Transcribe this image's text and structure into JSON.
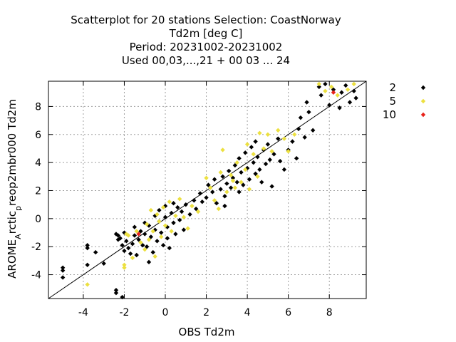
{
  "chart_data": {
    "type": "scatter",
    "title_lines": [
      "Scatterplot for   20 stations Selection: CoastNorway",
      "Td2m [deg C]",
      "Period: 20231002-20231002",
      "Used  00,03,...,21  + 00 03 ... 24"
    ],
    "xlabel": "OBS Td2m",
    "ylabel_main": "AROME",
    "ylabel_sub1": "A",
    "ylabel_mid": "rctic",
    "ylabel_sub2": "p",
    "ylabel_tail": "reop2mbr000 Td2m",
    "xlim": [
      -5.7,
      9.8
    ],
    "ylim": [
      -5.7,
      9.8
    ],
    "xticks": [
      -4,
      -2,
      0,
      2,
      4,
      6,
      8
    ],
    "yticks": [
      -4,
      -2,
      0,
      2,
      4,
      6,
      8
    ],
    "xtick_labels": [
      "-4",
      "-2",
      "0",
      "2",
      "4",
      "6",
      "8"
    ],
    "ytick_labels": [
      "-4",
      "-2",
      "0",
      "2",
      "4",
      "6",
      "8"
    ],
    "grid": true,
    "diagonal": true,
    "legend_position": "outside-right",
    "series": [
      {
        "name": "2",
        "color": "#000000",
        "points": [
          [
            -5.0,
            -3.5
          ],
          [
            -5.0,
            -3.7
          ],
          [
            -5.0,
            -4.2
          ],
          [
            -3.8,
            -1.9
          ],
          [
            -3.8,
            -2.1
          ],
          [
            -3.8,
            -3.3
          ],
          [
            -3.4,
            -2.4
          ],
          [
            -3.0,
            -3.2
          ],
          [
            -2.4,
            -5.1
          ],
          [
            -2.4,
            -5.3
          ],
          [
            -2.1,
            -5.6
          ],
          [
            -2.4,
            -1.1
          ],
          [
            -2.3,
            -1.2
          ],
          [
            -2.3,
            -1.5
          ],
          [
            -2.2,
            -1.4
          ],
          [
            -2.1,
            -1.9
          ],
          [
            -2.0,
            -1.0
          ],
          [
            -2.0,
            -2.3
          ],
          [
            -1.9,
            -1.6
          ],
          [
            -1.8,
            -2.1
          ],
          [
            -1.7,
            -2.5
          ],
          [
            -1.6,
            -1.8
          ],
          [
            -1.5,
            -0.6
          ],
          [
            -1.5,
            -1.2
          ],
          [
            -1.4,
            -2.6
          ],
          [
            -1.3,
            -1.5
          ],
          [
            -1.2,
            -0.9
          ],
          [
            -1.1,
            -1.9
          ],
          [
            -1.0,
            -0.3
          ],
          [
            -1.0,
            -1.1
          ],
          [
            -0.9,
            -2.0
          ],
          [
            -0.8,
            -3.1
          ],
          [
            -0.8,
            -0.5
          ],
          [
            -0.7,
            -1.3
          ],
          [
            -0.6,
            -2.4
          ],
          [
            -0.5,
            0.2
          ],
          [
            -0.5,
            -0.8
          ],
          [
            -0.4,
            -1.6
          ],
          [
            -0.3,
            0.6
          ],
          [
            -0.3,
            -0.2
          ],
          [
            -0.2,
            -1.0
          ],
          [
            -0.1,
            -1.9
          ],
          [
            0.0,
            0.9
          ],
          [
            0.0,
            0.1
          ],
          [
            0.1,
            -0.6
          ],
          [
            0.1,
            -1.4
          ],
          [
            0.2,
            -2.1
          ],
          [
            0.3,
            0.4
          ],
          [
            0.4,
            -0.3
          ],
          [
            0.4,
            1.1
          ],
          [
            0.5,
            -1.1
          ],
          [
            0.6,
            0.8
          ],
          [
            0.7,
            -0.1
          ],
          [
            0.8,
            0.5
          ],
          [
            0.9,
            -0.8
          ],
          [
            1.0,
            1.0
          ],
          [
            1.2,
            0.3
          ],
          [
            1.4,
            1.3
          ],
          [
            1.5,
            0.7
          ],
          [
            1.7,
            1.8
          ],
          [
            1.8,
            1.2
          ],
          [
            2.0,
            1.5
          ],
          [
            2.1,
            2.4
          ],
          [
            2.3,
            1.9
          ],
          [
            2.4,
            2.8
          ],
          [
            2.5,
            1.1
          ],
          [
            2.7,
            2.1
          ],
          [
            2.8,
            3.0
          ],
          [
            2.9,
            1.6
          ],
          [
            3.0,
            2.5
          ],
          [
            3.1,
            3.4
          ],
          [
            3.2,
            2.2
          ],
          [
            3.3,
            2.9
          ],
          [
            3.4,
            3.8
          ],
          [
            3.5,
            2.6
          ],
          [
            3.6,
            1.9
          ],
          [
            3.6,
            4.3
          ],
          [
            3.7,
            3.3
          ],
          [
            3.8,
            2.4
          ],
          [
            3.9,
            4.7
          ],
          [
            4.0,
            3.6
          ],
          [
            4.1,
            2.8
          ],
          [
            4.2,
            5.1
          ],
          [
            4.3,
            4.0
          ],
          [
            4.4,
            3.2
          ],
          [
            4.4,
            5.5
          ],
          [
            4.5,
            4.4
          ],
          [
            4.6,
            3.5
          ],
          [
            4.7,
            2.6
          ],
          [
            4.8,
            4.9
          ],
          [
            4.9,
            3.9
          ],
          [
            5.0,
            5.3
          ],
          [
            5.1,
            4.2
          ],
          [
            5.2,
            2.3
          ],
          [
            5.3,
            4.6
          ],
          [
            5.5,
            5.7
          ],
          [
            5.6,
            4.1
          ],
          [
            5.8,
            3.5
          ],
          [
            6.0,
            4.9
          ],
          [
            6.2,
            5.5
          ],
          [
            6.4,
            4.3
          ],
          [
            6.5,
            6.4
          ],
          [
            6.6,
            7.2
          ],
          [
            6.8,
            5.8
          ],
          [
            6.9,
            8.3
          ],
          [
            7.0,
            7.6
          ],
          [
            7.2,
            6.3
          ],
          [
            7.5,
            9.4
          ],
          [
            7.6,
            8.8
          ],
          [
            7.8,
            9.6
          ],
          [
            8.0,
            8.1
          ],
          [
            8.2,
            9.2
          ],
          [
            8.5,
            7.9
          ],
          [
            8.6,
            9.0
          ],
          [
            8.8,
            9.5
          ],
          [
            9.0,
            8.3
          ],
          [
            9.2,
            9.1
          ],
          [
            9.3,
            8.6
          ],
          [
            2.9,
            0.9
          ]
        ]
      },
      {
        "name": "5",
        "color": "#ece040",
        "points": [
          [
            -3.8,
            -4.7
          ],
          [
            -2.0,
            -3.3
          ],
          [
            -2.0,
            -3.5
          ],
          [
            -1.8,
            -1.2
          ],
          [
            -1.6,
            -2.8
          ],
          [
            -1.4,
            -0.9
          ],
          [
            -1.2,
            -1.7
          ],
          [
            -1.0,
            -2.2
          ],
          [
            -0.9,
            -0.4
          ],
          [
            -0.8,
            -1.5
          ],
          [
            -0.7,
            0.6
          ],
          [
            -0.6,
            -0.9
          ],
          [
            -0.5,
            -2.7
          ],
          [
            -0.4,
            0.3
          ],
          [
            -0.2,
            -1.3
          ],
          [
            -0.1,
            0.8
          ],
          [
            0.0,
            -0.5
          ],
          [
            0.2,
            1.2
          ],
          [
            0.3,
            -0.9
          ],
          [
            0.5,
            0.2
          ],
          [
            0.7,
            1.4
          ],
          [
            0.9,
            0.1
          ],
          [
            1.1,
            -0.7
          ],
          [
            1.3,
            0.9
          ],
          [
            2.0,
            2.9
          ],
          [
            2.2,
            2.2
          ],
          [
            2.4,
            1.3
          ],
          [
            2.6,
            0.7
          ],
          [
            2.7,
            3.3
          ],
          [
            2.8,
            4.9
          ],
          [
            3.0,
            1.9
          ],
          [
            3.2,
            3.1
          ],
          [
            3.4,
            2.2
          ],
          [
            3.5,
            4.0
          ],
          [
            3.7,
            2.6
          ],
          [
            3.9,
            3.5
          ],
          [
            4.0,
            5.3
          ],
          [
            4.1,
            2.1
          ],
          [
            4.3,
            4.6
          ],
          [
            4.5,
            3.0
          ],
          [
            4.6,
            6.1
          ],
          [
            4.8,
            5.0
          ],
          [
            5.0,
            6.0
          ],
          [
            5.2,
            4.8
          ],
          [
            5.5,
            6.3
          ],
          [
            5.8,
            5.7
          ],
          [
            6.0,
            4.8
          ],
          [
            6.3,
            6.0
          ],
          [
            7.5,
            9.6
          ],
          [
            7.8,
            9.1
          ],
          [
            8.1,
            9.4
          ],
          [
            8.4,
            8.8
          ],
          [
            8.9,
            9.2
          ],
          [
            9.2,
            9.6
          ],
          [
            -1.9,
            -1.1
          ],
          [
            -0.3,
            -0.2
          ],
          [
            1.6,
            0.5
          ],
          [
            3.3,
            2.7
          ]
        ]
      },
      {
        "name": "10",
        "color": "#e8221a",
        "points": [
          [
            -1.3,
            -1.1
          ],
          [
            8.2,
            9.0
          ]
        ]
      }
    ]
  }
}
